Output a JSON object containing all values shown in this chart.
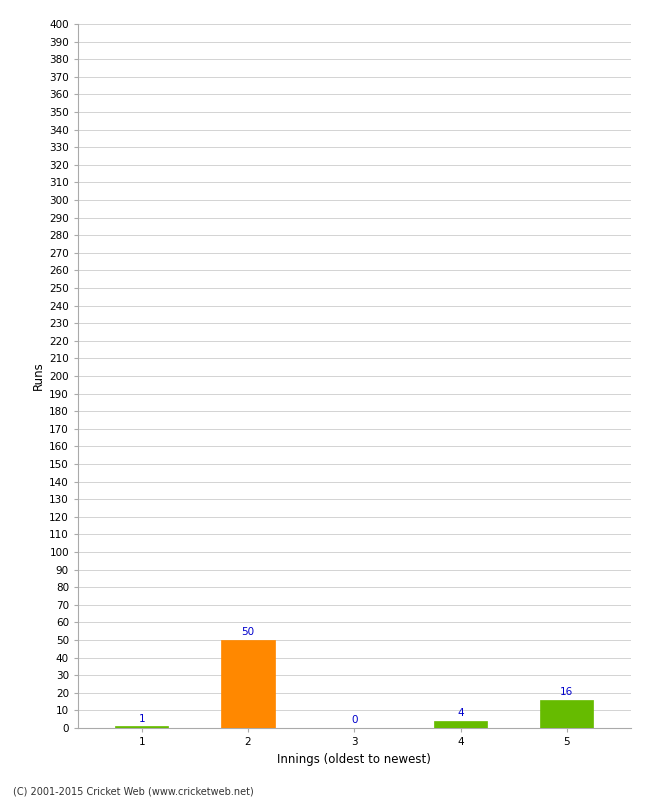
{
  "categories": [
    "1",
    "2",
    "3",
    "4",
    "5"
  ],
  "values": [
    1,
    50,
    0,
    4,
    16
  ],
  "bar_colors": [
    "#66bb00",
    "#ff8800",
    "#66bb00",
    "#66bb00",
    "#66bb00"
  ],
  "ylabel": "Runs",
  "xlabel": "Innings (oldest to newest)",
  "ylim": [
    0,
    400
  ],
  "ytick_step": 10,
  "annotation_color": "#0000cc",
  "annotation_fontsize": 7.5,
  "axis_label_fontsize": 8.5,
  "tick_fontsize": 7.5,
  "background_color": "#ffffff",
  "grid_color": "#cccccc",
  "footer": "(C) 2001-2015 Cricket Web (www.cricketweb.net)"
}
